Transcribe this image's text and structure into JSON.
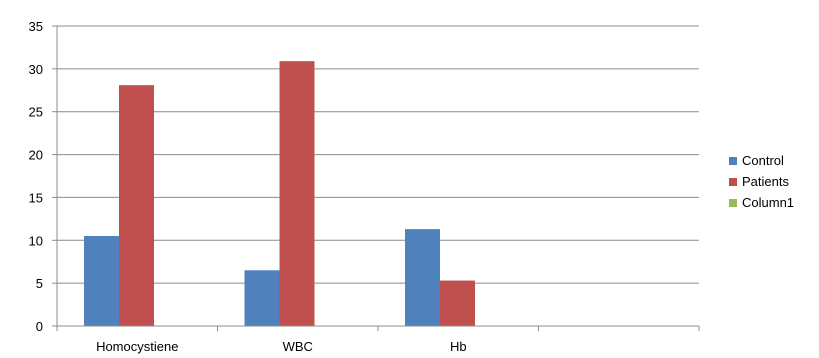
{
  "chart_data": {
    "type": "bar",
    "title": "",
    "xlabel": "",
    "ylabel": "",
    "categories": [
      "Homocystiene",
      "WBC",
      "Hb",
      ""
    ],
    "series": [
      {
        "name": "Control",
        "color": "#4F81BD",
        "values": [
          10.5,
          6.5,
          11.3,
          null
        ]
      },
      {
        "name": "Patients",
        "color": "#C0504D",
        "values": [
          28.1,
          30.9,
          5.3,
          null
        ]
      },
      {
        "name": "Column1",
        "color": "#9BBB59",
        "values": [
          null,
          null,
          null,
          null
        ]
      }
    ],
    "ylim": [
      0,
      35
    ],
    "yticks": [
      0,
      5,
      10,
      15,
      20,
      25,
      30,
      35
    ],
    "grid": true,
    "legend_position": "right"
  }
}
